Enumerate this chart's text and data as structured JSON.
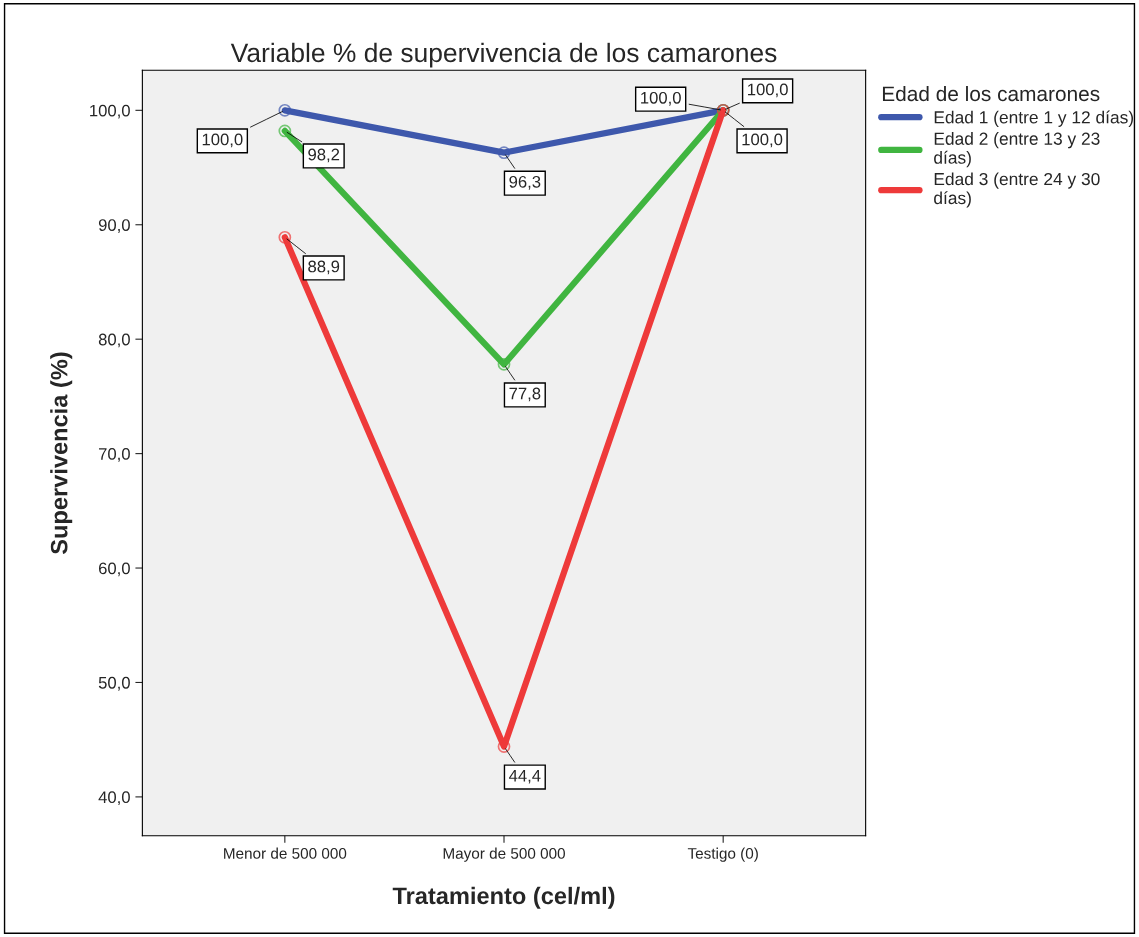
{
  "chart_data": {
    "type": "line",
    "title": "Variable % de supervivencia de los camarones",
    "xlabel": "Tratamiento (cel/ml)",
    "ylabel": "Supervivencia (%)",
    "legend_title": "Edad de los camarones",
    "categories": [
      "Menor de 500 000",
      "Mayor de 500 000",
      "Testigo (0)"
    ],
    "series": [
      {
        "name": "Edad 1 (entre 1 y 12 días)",
        "color": "#3e58ac",
        "values": [
          100.0,
          96.3,
          100.0
        ],
        "value_labels": [
          "100,0",
          "96,3",
          "100,0"
        ]
      },
      {
        "name": "Edad 2 (entre 13 y 23\ndías)",
        "color": "#40b540",
        "values": [
          98.2,
          77.8,
          100.0
        ],
        "value_labels": [
          "98,2",
          "77,8",
          "100,0"
        ]
      },
      {
        "name": "Edad 3 (entre 24 y 30\ndías)",
        "color": "#ee3a3a",
        "values": [
          88.9,
          44.4,
          100.0
        ],
        "value_labels": [
          "88,9",
          "44,4",
          "100,0"
        ]
      }
    ],
    "ylim": [
      36.6,
      103.5
    ],
    "yticks": [
      {
        "value": 40,
        "label": "40,0"
      },
      {
        "value": 50,
        "label": "50,0"
      },
      {
        "value": 60,
        "label": "60,0"
      },
      {
        "value": 70,
        "label": "70,0"
      },
      {
        "value": 80,
        "label": "80,0"
      },
      {
        "value": 90,
        "label": "90,0"
      },
      {
        "value": 100,
        "label": "100,0"
      }
    ],
    "marker": "circle",
    "line_style": "solid",
    "grid": false,
    "legend": "top right"
  }
}
